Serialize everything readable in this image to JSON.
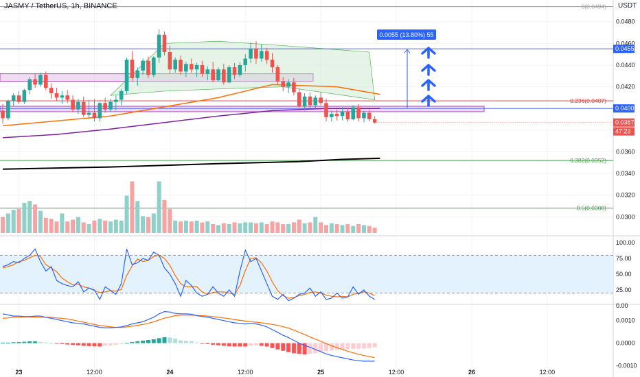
{
  "header": {
    "title": "JASMY / TetherUS, 1h, BINANCE",
    "currency": "USDT"
  },
  "colors": {
    "up": "#26a69a",
    "down": "#ef5350",
    "up_vol": "#8fd1c9",
    "down_vol": "#f5a3a3",
    "ema_orange": "#ff6d00",
    "ema_purple": "#7b1fa2",
    "ema_black": "#000000",
    "fib_red": "#e53935",
    "fib_green": "#43a047",
    "range_line": "#3d5afe",
    "box_fill": "#e1bee7",
    "box_stroke": "#ab47bc",
    "blue": "#2962ff",
    "rsi_band": "#e3f2fd"
  },
  "chart_data": [
    {
      "type": "candlestick",
      "pane": "price",
      "series": [
        {
          "name": "EMA",
          "color": "#ff6d00"
        },
        {
          "name": "EMA",
          "color": "#7b1fa2"
        },
        {
          "name": "EMA",
          "color": "#000000"
        }
      ],
      "ylim": [
        0.0285,
        0.0495
      ],
      "y_ticks": [
        "0.0480",
        "0.0460",
        "0.0440",
        "0.0420",
        "0.0400",
        "0.0380",
        "0.0360",
        "0.0340",
        "0.0320",
        "0.0300"
      ],
      "x_ticks": [
        "23",
        "12:00",
        "24",
        "12:00",
        "25",
        "12:00",
        "26",
        "12:00"
      ],
      "candles": [
        [
          0.0398,
          0.0404,
          0.0386,
          0.0391
        ],
        [
          0.0391,
          0.0408,
          0.0389,
          0.0407
        ],
        [
          0.0407,
          0.0414,
          0.0402,
          0.0412
        ],
        [
          0.0412,
          0.0416,
          0.0404,
          0.0406
        ],
        [
          0.0406,
          0.0418,
          0.0404,
          0.0417
        ],
        [
          0.0417,
          0.0429,
          0.0413,
          0.0427
        ],
        [
          0.0427,
          0.0432,
          0.0419,
          0.0422
        ],
        [
          0.0422,
          0.0433,
          0.042,
          0.0431
        ],
        [
          0.0431,
          0.0434,
          0.0417,
          0.0419
        ],
        [
          0.0419,
          0.0423,
          0.0409,
          0.0414
        ],
        [
          0.0414,
          0.0419,
          0.0407,
          0.041
        ],
        [
          0.041,
          0.0416,
          0.0404,
          0.0412
        ],
        [
          0.0412,
          0.0417,
          0.0405,
          0.0408
        ],
        [
          0.0408,
          0.0412,
          0.0397,
          0.0399
        ],
        [
          0.0399,
          0.0409,
          0.0395,
          0.0406
        ],
        [
          0.0406,
          0.0411,
          0.0392,
          0.0394
        ],
        [
          0.0394,
          0.0408,
          0.0391,
          0.0396
        ],
        [
          0.0396,
          0.0409,
          0.0388,
          0.0391
        ],
        [
          0.0391,
          0.0406,
          0.0388,
          0.0405
        ],
        [
          0.0405,
          0.041,
          0.0396,
          0.0399
        ],
        [
          0.0399,
          0.0409,
          0.0397,
          0.0406
        ],
        [
          0.0406,
          0.0412,
          0.0398,
          0.0408
        ],
        [
          0.0408,
          0.0418,
          0.0403,
          0.0416
        ],
        [
          0.0416,
          0.0447,
          0.0413,
          0.0445
        ],
        [
          0.0445,
          0.0453,
          0.0425,
          0.0428
        ],
        [
          0.0428,
          0.0438,
          0.0421,
          0.0435
        ],
        [
          0.0435,
          0.0446,
          0.0431,
          0.0444
        ],
        [
          0.0444,
          0.0448,
          0.0428,
          0.0431
        ],
        [
          0.0431,
          0.0448,
          0.0429,
          0.0447
        ],
        [
          0.0447,
          0.0473,
          0.0442,
          0.0468
        ],
        [
          0.0468,
          0.0471,
          0.0449,
          0.0452
        ],
        [
          0.0452,
          0.0458,
          0.0432,
          0.0436
        ],
        [
          0.0436,
          0.0447,
          0.0433,
          0.0445
        ],
        [
          0.0445,
          0.0449,
          0.0431,
          0.0434
        ],
        [
          0.0434,
          0.0443,
          0.0429,
          0.0441
        ],
        [
          0.0441,
          0.0446,
          0.0433,
          0.0436
        ],
        [
          0.0436,
          0.0442,
          0.0429,
          0.044
        ],
        [
          0.044,
          0.0444,
          0.0429,
          0.0432
        ],
        [
          0.0432,
          0.0439,
          0.0426,
          0.0436
        ],
        [
          0.0436,
          0.0443,
          0.0424,
          0.0426
        ],
        [
          0.0426,
          0.0438,
          0.0425,
          0.0436
        ],
        [
          0.0436,
          0.0441,
          0.0422,
          0.0424
        ],
        [
          0.0424,
          0.044,
          0.0423,
          0.0438
        ],
        [
          0.0438,
          0.0442,
          0.0427,
          0.0431
        ],
        [
          0.0431,
          0.0443,
          0.0429,
          0.044
        ],
        [
          0.044,
          0.045,
          0.0434,
          0.0446
        ],
        [
          0.0446,
          0.0461,
          0.0442,
          0.0455
        ],
        [
          0.0455,
          0.0462,
          0.0441,
          0.0446
        ],
        [
          0.0446,
          0.0459,
          0.0443,
          0.0453
        ],
        [
          0.0453,
          0.0456,
          0.0441,
          0.0445
        ],
        [
          0.0445,
          0.0451,
          0.0433,
          0.0438
        ],
        [
          0.0438,
          0.044,
          0.0422,
          0.0425
        ],
        [
          0.0425,
          0.0429,
          0.0416,
          0.042
        ],
        [
          0.042,
          0.0427,
          0.0414,
          0.0424
        ],
        [
          0.0424,
          0.0428,
          0.0412,
          0.0415
        ],
        [
          0.0415,
          0.0418,
          0.0398,
          0.0402
        ],
        [
          0.0402,
          0.0414,
          0.0398,
          0.0411
        ],
        [
          0.0411,
          0.0415,
          0.0399,
          0.0403
        ],
        [
          0.0403,
          0.0412,
          0.0399,
          0.041
        ],
        [
          0.041,
          0.0415,
          0.0403,
          0.0405
        ],
        [
          0.0405,
          0.0409,
          0.0388,
          0.0392
        ],
        [
          0.0392,
          0.0398,
          0.0388,
          0.0395
        ],
        [
          0.0395,
          0.0399,
          0.0389,
          0.0393
        ],
        [
          0.0393,
          0.0401,
          0.0389,
          0.0397
        ],
        [
          0.0397,
          0.04,
          0.0388,
          0.039
        ],
        [
          0.039,
          0.0403,
          0.0389,
          0.0401
        ],
        [
          0.0401,
          0.0404,
          0.0388,
          0.0391
        ],
        [
          0.0391,
          0.0398,
          0.0387,
          0.0396
        ],
        [
          0.0396,
          0.0399,
          0.0388,
          0.039
        ],
        [
          0.039,
          0.0393,
          0.0386,
          0.0387
        ]
      ],
      "ema_orange": [
        [
          0,
          0.0384
        ],
        [
          20,
          0.0393
        ],
        [
          40,
          0.041
        ],
        [
          50,
          0.0422
        ],
        [
          62,
          0.042
        ],
        [
          70,
          0.0413
        ]
      ],
      "ema_purple": [
        [
          0,
          0.0373
        ],
        [
          10,
          0.0376
        ],
        [
          20,
          0.0381
        ],
        [
          30,
          0.0387
        ],
        [
          40,
          0.0393
        ],
        [
          50,
          0.0398
        ],
        [
          60,
          0.04
        ],
        [
          70,
          0.04
        ]
      ],
      "ema_black": [
        [
          0,
          0.0344
        ],
        [
          20,
          0.0346
        ],
        [
          40,
          0.0349
        ],
        [
          55,
          0.0351
        ],
        [
          63,
          0.0353
        ],
        [
          70,
          0.0354
        ]
      ],
      "fib_levels": [
        {
          "label": "0(0.0494)",
          "value": 0.0494,
          "color": "#9e9e9e"
        },
        {
          "label": "0.236(0.0407)",
          "value": 0.0407,
          "color": "#e53935"
        },
        {
          "label": "0.382(0.0352)",
          "value": 0.0352,
          "color": "#43a047"
        },
        {
          "label": "0.5(0.0308)",
          "value": 0.0308,
          "color": "#43a047"
        }
      ],
      "zones": [
        [
          0.0425,
          0.0432
        ],
        [
          0.0397,
          0.0402
        ]
      ],
      "target_level": 0.0455,
      "support_level": 0.04,
      "target_label": "0.0055 (13.80%) 55",
      "price_tags": [
        {
          "label": "0.0455",
          "value": 0.0455
        },
        {
          "label": "0.0400",
          "value": 0.04
        },
        {
          "label": "0.0387",
          "value": 0.0387
        },
        {
          "label": "47:23",
          "value": 0.0383
        }
      ],
      "volume": [
        18,
        22,
        26,
        27,
        34,
        36,
        32,
        25,
        17,
        16,
        13,
        22,
        13,
        15,
        18,
        12,
        10,
        14,
        16,
        14,
        13,
        15,
        14,
        42,
        58,
        36,
        19,
        18,
        22,
        58,
        37,
        27,
        14,
        13,
        14,
        13,
        14,
        12,
        13,
        10,
        9,
        11,
        10,
        12,
        11,
        12,
        12,
        11,
        12,
        10,
        13,
        12,
        10,
        10,
        12,
        15,
        11,
        12,
        18,
        12,
        9,
        11,
        10,
        9,
        10,
        8,
        10,
        9,
        8,
        6
      ],
      "stoch_rsi": {
        "ylim": [
          0,
          100
        ],
        "y_ticks": [
          "100.00",
          "75.00",
          "50.00",
          "25.00",
          "0.00"
        ],
        "bands": [
          80,
          20
        ],
        "k": [
          62,
          65,
          70,
          68,
          75,
          80,
          90,
          70,
          55,
          62,
          40,
          35,
          32,
          30,
          38,
          22,
          28,
          25,
          10,
          30,
          24,
          18,
          35,
          90,
          65,
          68,
          75,
          72,
          85,
          80,
          60,
          50,
          35,
          15,
          40,
          32,
          20,
          15,
          18,
          30,
          20,
          15,
          25,
          15,
          55,
          88,
          70,
          75,
          55,
          35,
          15,
          10,
          18,
          8,
          12,
          18,
          20,
          28,
          15,
          22,
          10,
          12,
          20,
          12,
          14,
          30,
          18,
          25,
          15,
          10
        ],
        "d": [
          60,
          62,
          65,
          70,
          72,
          76,
          80,
          78,
          65,
          60,
          54,
          44,
          38,
          33,
          34,
          30,
          28,
          24,
          21,
          22,
          24,
          23,
          26,
          48,
          63,
          74,
          70,
          72,
          78,
          80,
          75,
          64,
          48,
          35,
          30,
          30,
          30,
          22,
          18,
          21,
          22,
          22,
          20,
          18,
          32,
          56,
          75,
          76,
          68,
          55,
          38,
          24,
          16,
          12,
          13,
          16,
          18,
          21,
          22,
          20,
          17,
          15,
          14,
          15,
          14,
          18,
          20,
          22,
          20,
          16
        ]
      },
      "macd": {
        "ylim": [
          -0.0012,
          0.0016
        ],
        "y_ticks": [
          "0.0010",
          "0.0000",
          "-0.0010"
        ],
        "macd": [
          0.0013,
          0.00125,
          0.0012,
          0.0012,
          0.00118,
          0.00118,
          0.0012,
          0.0012,
          0.00115,
          0.0011,
          0.00105,
          0.001,
          0.00095,
          0.0009,
          0.00088,
          0.00085,
          0.0008,
          0.00075,
          0.0007,
          0.00068,
          0.00068,
          0.0007,
          0.00072,
          0.00078,
          0.00085,
          0.0009,
          0.00095,
          0.00105,
          0.00115,
          0.0013,
          0.0014,
          0.00138,
          0.00132,
          0.0013,
          0.0013,
          0.00128,
          0.00122,
          0.00118,
          0.00115,
          0.0011,
          0.00105,
          0.001,
          0.00095,
          0.0009,
          0.00088,
          0.00085,
          0.00088,
          0.00085,
          0.0008,
          0.00072,
          0.0006,
          0.00048,
          0.00035,
          0.00025,
          0.00012,
          0.0,
          -0.0001,
          -0.00018,
          -0.00028,
          -0.00038,
          -0.00048,
          -0.00055,
          -0.0006,
          -0.00065,
          -0.0007,
          -0.00075,
          -0.00078,
          -0.0008,
          -0.0008,
          -0.0008
        ],
        "signal": [
          0.0011,
          0.00112,
          0.00115,
          0.00115,
          0.00116,
          0.00116,
          0.00116,
          0.00115,
          0.00115,
          0.00114,
          0.00112,
          0.0011,
          0.00107,
          0.00103,
          0.00098,
          0.00093,
          0.00088,
          0.00083,
          0.00078,
          0.00075,
          0.00072,
          0.0007,
          0.0007,
          0.00072,
          0.00075,
          0.00079,
          0.00083,
          0.00088,
          0.00095,
          0.00103,
          0.00111,
          0.00116,
          0.00122,
          0.00124,
          0.00124,
          0.00124,
          0.00123,
          0.00122,
          0.0012,
          0.00118,
          0.00115,
          0.00112,
          0.00109,
          0.00105,
          0.00101,
          0.00098,
          0.00095,
          0.00093,
          0.0009,
          0.00087,
          0.00083,
          0.00079,
          0.00073,
          0.00067,
          0.00058,
          0.00048,
          0.00038,
          0.00028,
          0.00018,
          8e-05,
          -2e-05,
          -0.00012,
          -0.0002,
          -0.00028,
          -0.00036,
          -0.00043,
          -0.00049,
          -0.00055,
          -0.0006,
          -0.00064
        ],
        "histogram": [
          2e-05,
          2e-05,
          4e-05,
          5e-05,
          6e-05,
          8e-05,
          8e-05,
          5e-05,
          3e-05,
          1e-05,
          -2e-05,
          -4e-05,
          -6e-05,
          -8e-05,
          -0.0001,
          -0.00012,
          -0.00013,
          -0.00014,
          -0.00015,
          -0.00012,
          -0.0001,
          -7e-05,
          -4e-05,
          1e-05,
          5e-05,
          8e-05,
          0.00011,
          0.00014,
          0.00017,
          0.00022,
          0.00026,
          0.00025,
          0.0002,
          0.00012,
          0.0001,
          8e-05,
          3e-05,
          -1e-05,
          -4e-05,
          -7e-05,
          -0.0001,
          -0.00012,
          -0.00014,
          -0.00015,
          -0.00015,
          -0.00015,
          -0.00012,
          -0.0001,
          -0.00012,
          -0.00015,
          -0.00022,
          -0.00028,
          -0.00034,
          -0.0004,
          -0.00045,
          -0.00048,
          -0.0005,
          -0.00048,
          -0.00045,
          -0.0004,
          -0.00036,
          -0.00033,
          -0.0003,
          -0.00028,
          -0.00027,
          -0.00026,
          -0.00025,
          -0.00024,
          -0.00022,
          -0.00018
        ]
      }
    }
  ]
}
